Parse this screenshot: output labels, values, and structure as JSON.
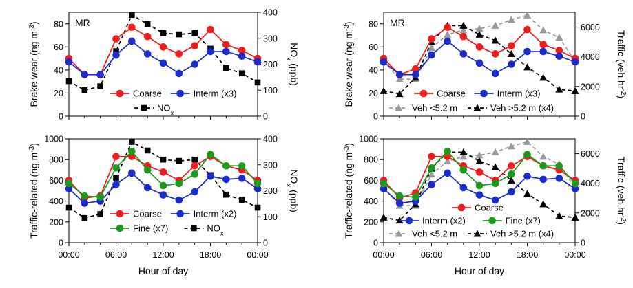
{
  "chart_data": [
    {
      "type": "line",
      "panel": "top-left",
      "annotation": "MR",
      "ylabel": "Brake wear (ng m-3)",
      "ylabel_base": "Brake wear (ng m",
      "ylabel_sup": "-3",
      "ylabel_close": ")",
      "y2label": "NOx (ppb)",
      "y2label_base": "NO",
      "y2label_sub": "x",
      "y2label_rest": " (ppb)",
      "xlim": [
        0,
        24
      ],
      "ylim": [
        0,
        90
      ],
      "y2lim": [
        0,
        400
      ],
      "yticks": [
        0,
        20,
        40,
        60,
        80
      ],
      "y2ticks": [
        0,
        100,
        200,
        300,
        400
      ],
      "grid": false,
      "series": [
        {
          "name": "Coarse",
          "axis": "left",
          "color": "#ee1c1c",
          "marker": "circle",
          "dash": false,
          "x": [
            0,
            2,
            4,
            6,
            8,
            10,
            12,
            14,
            16,
            18,
            20,
            22,
            24
          ],
          "y": [
            50,
            36,
            36,
            67,
            77,
            69,
            60,
            54,
            61,
            75,
            62,
            57,
            50
          ]
        },
        {
          "name": "Interm (x3)",
          "axis": "left",
          "color": "#1c2bcc",
          "marker": "circle",
          "dash": false,
          "x": [
            0,
            2,
            4,
            6,
            8,
            10,
            12,
            14,
            16,
            18,
            20,
            22,
            24
          ],
          "y": [
            47,
            36,
            36,
            53,
            65,
            54,
            46,
            37,
            45,
            56,
            56,
            52,
            47
          ]
        },
        {
          "name": "NOx",
          "axis": "right",
          "color": "#000000",
          "marker": "square",
          "dash": true,
          "x": [
            0,
            2,
            4,
            6,
            8,
            10,
            12,
            14,
            16,
            18,
            20,
            22,
            24
          ],
          "y": [
            135,
            100,
            115,
            250,
            390,
            355,
            320,
            315,
            320,
            260,
            185,
            165,
            130
          ]
        }
      ],
      "legend": [
        {
          "label": "Coarse",
          "series": 0
        },
        {
          "label": "Interm (x3)",
          "series": 1
        },
        {
          "label": "NO",
          "sub": "x",
          "series": 2
        }
      ]
    },
    {
      "type": "line",
      "panel": "top-right",
      "annotation": "MR",
      "ylabel": "Brake wear (ng m-3)",
      "ylabel_base": "Brake wear (ng m",
      "ylabel_sup": "-3",
      "ylabel_close": ")",
      "y2label": "Traffic (veh hr-2)",
      "y2label_base": "Traffic (veh hr",
      "y2label_sup": "-2",
      "y2label_close": ")",
      "xlim": [
        0,
        24
      ],
      "ylim": [
        0,
        90
      ],
      "y2lim": [
        0,
        7000
      ],
      "yticks": [
        0,
        20,
        40,
        60,
        80
      ],
      "y2ticks": [
        0,
        2000,
        4000,
        6000
      ],
      "grid": false,
      "series": [
        {
          "name": "Coarse",
          "axis": "left",
          "color": "#ee1c1c",
          "marker": "circle",
          "dash": false,
          "x": [
            0,
            2,
            4,
            6,
            8,
            10,
            12,
            14,
            16,
            18,
            20,
            22,
            24
          ],
          "y": [
            50,
            36,
            41,
            67,
            77,
            69,
            60,
            54,
            61,
            75,
            62,
            57,
            50
          ]
        },
        {
          "name": "Interm (x3)",
          "axis": "left",
          "color": "#1c2bcc",
          "marker": "circle",
          "dash": false,
          "x": [
            0,
            2,
            4,
            6,
            8,
            10,
            12,
            14,
            16,
            18,
            20,
            22,
            24
          ],
          "y": [
            47,
            36,
            36,
            53,
            65,
            54,
            46,
            37,
            45,
            56,
            56,
            52,
            47
          ]
        },
        {
          "name": "Veh <5.2 m",
          "axis": "right",
          "color": "#999999",
          "marker": "triangle",
          "dash": true,
          "x": [
            0,
            2,
            4,
            6,
            8,
            10,
            12,
            14,
            16,
            18,
            20,
            22,
            24
          ],
          "y": [
            3700,
            2500,
            2500,
            4600,
            5500,
            5800,
            5900,
            6100,
            6500,
            6800,
            5800,
            5300,
            3700
          ]
        },
        {
          "name": "Veh >5.2 m (x4)",
          "axis": "right",
          "color": "#000000",
          "marker": "triangle",
          "dash": true,
          "x": [
            0,
            2,
            4,
            6,
            8,
            10,
            12,
            14,
            16,
            18,
            20,
            22,
            24
          ],
          "y": [
            1700,
            1500,
            2600,
            5000,
            6100,
            6100,
            5500,
            5100,
            4200,
            3300,
            2600,
            1800,
            1700
          ]
        }
      ],
      "legend": [
        {
          "label": "Coarse",
          "series": 0
        },
        {
          "label": "Interm (x3)",
          "series": 1
        },
        {
          "label": "Veh <5.2 m",
          "series": 2
        },
        {
          "label": "Veh >5.2 m (x4)",
          "series": 3
        }
      ]
    },
    {
      "type": "line",
      "panel": "bottom-left",
      "ylabel": "Traffic-related (ng m-3)",
      "ylabel_base": "Traffic-related (ng m",
      "ylabel_sup": "-3",
      "ylabel_close": ")",
      "y2label": "NOx (ppb)",
      "y2label_base": "NO",
      "y2label_sub": "x",
      "y2label_rest": " (ppb)",
      "xlabel": "Hour of day",
      "xlim": [
        0,
        24
      ],
      "ylim": [
        0,
        1000
      ],
      "y2lim": [
        0,
        400
      ],
      "yticks": [
        0,
        200,
        400,
        600,
        800,
        1000
      ],
      "y2ticks": [
        0,
        100,
        200,
        300,
        400
      ],
      "xticks": [
        0,
        6,
        12,
        18,
        24
      ],
      "xticklabels": [
        "00:00",
        "06:00",
        "12:00",
        "18:00",
        "00:00"
      ],
      "grid": false,
      "series": [
        {
          "name": "Coarse",
          "axis": "left",
          "color": "#ee1c1c",
          "marker": "circle",
          "dash": false,
          "x": [
            0,
            2,
            4,
            6,
            8,
            10,
            12,
            14,
            16,
            18,
            20,
            22,
            24
          ],
          "y": [
            600,
            430,
            450,
            830,
            830,
            740,
            680,
            600,
            740,
            830,
            740,
            700,
            600
          ]
        },
        {
          "name": "Interm (x2)",
          "axis": "left",
          "color": "#1c2bcc",
          "marker": "circle",
          "dash": false,
          "x": [
            0,
            2,
            4,
            6,
            8,
            10,
            12,
            14,
            16,
            18,
            20,
            22,
            24
          ],
          "y": [
            520,
            380,
            400,
            560,
            670,
            530,
            460,
            410,
            490,
            640,
            610,
            620,
            520
          ]
        },
        {
          "name": "Fine (x7)",
          "axis": "left",
          "color": "#1d9a1d",
          "marker": "circle",
          "dash": false,
          "x": [
            0,
            2,
            4,
            6,
            8,
            10,
            12,
            14,
            16,
            18,
            20,
            22,
            24
          ],
          "y": [
            570,
            450,
            440,
            720,
            880,
            700,
            550,
            570,
            660,
            850,
            740,
            740,
            570
          ]
        },
        {
          "name": "NOx",
          "axis": "right",
          "color": "#000000",
          "marker": "square",
          "dash": true,
          "x": [
            0,
            2,
            4,
            6,
            8,
            10,
            12,
            14,
            16,
            18,
            20,
            22,
            24
          ],
          "y": [
            135,
            95,
            110,
            250,
            388,
            355,
            320,
            315,
            320,
            260,
            185,
            165,
            135
          ]
        }
      ],
      "legend": [
        {
          "label": "Coarse",
          "series": 0
        },
        {
          "label": "Interm (x2)",
          "series": 1
        },
        {
          "label": "Fine (x7)",
          "series": 2
        },
        {
          "label": "NO",
          "sub": "x",
          "series": 3
        }
      ]
    },
    {
      "type": "line",
      "panel": "bottom-right",
      "ylabel": "Traffic-related (ng m-3)",
      "ylabel_base": "Traffic-related (ng m",
      "ylabel_sup": "-3",
      "ylabel_close": ")",
      "y2label": "Traffic (veh hr-2)",
      "y2label_base": "Traffic (veh hr",
      "y2label_sup": "-2",
      "y2label_close": ")",
      "xlabel": "Hour of day",
      "xlim": [
        0,
        24
      ],
      "ylim": [
        0,
        1000
      ],
      "y2lim": [
        0,
        7000
      ],
      "yticks": [
        0,
        200,
        400,
        600,
        800,
        1000
      ],
      "y2ticks": [
        0,
        2000,
        4000,
        6000
      ],
      "xticks": [
        0,
        6,
        12,
        18,
        24
      ],
      "xticklabels": [
        "00:00",
        "06:00",
        "12:00",
        "18:00",
        "00:00"
      ],
      "grid": false,
      "series": [
        {
          "name": "Coarse",
          "axis": "left",
          "color": "#ee1c1c",
          "marker": "circle",
          "dash": false,
          "x": [
            0,
            2,
            4,
            6,
            8,
            10,
            12,
            14,
            16,
            18,
            20,
            22,
            24
          ],
          "y": [
            600,
            430,
            480,
            830,
            830,
            740,
            680,
            600,
            740,
            830,
            740,
            700,
            600
          ]
        },
        {
          "name": "Interm (x2)",
          "axis": "left",
          "color": "#1c2bcc",
          "marker": "circle",
          "dash": false,
          "x": [
            0,
            2,
            4,
            6,
            8,
            10,
            12,
            14,
            16,
            18,
            20,
            22,
            24
          ],
          "y": [
            520,
            380,
            400,
            560,
            670,
            530,
            460,
            410,
            490,
            640,
            610,
            620,
            520
          ]
        },
        {
          "name": "Fine (x7)",
          "axis": "left",
          "color": "#1d9a1d",
          "marker": "circle",
          "dash": false,
          "x": [
            0,
            2,
            4,
            6,
            8,
            10,
            12,
            14,
            16,
            18,
            20,
            22,
            24
          ],
          "y": [
            570,
            450,
            440,
            720,
            880,
            700,
            550,
            570,
            660,
            850,
            740,
            740,
            570
          ]
        },
        {
          "name": "Veh <5.2 m",
          "axis": "right",
          "color": "#999999",
          "marker": "triangle",
          "dash": true,
          "x": [
            0,
            2,
            4,
            6,
            8,
            10,
            12,
            14,
            16,
            18,
            20,
            22,
            24
          ],
          "y": [
            3700,
            2500,
            2500,
            4600,
            5500,
            5800,
            5900,
            6100,
            6500,
            6800,
            5800,
            5300,
            3700
          ]
        },
        {
          "name": "Veh >5.2 m (x4)",
          "axis": "right",
          "color": "#000000",
          "marker": "triangle",
          "dash": true,
          "x": [
            0,
            2,
            4,
            6,
            8,
            10,
            12,
            14,
            16,
            18,
            20,
            22,
            24
          ],
          "y": [
            1700,
            1500,
            2600,
            5000,
            6100,
            6100,
            5500,
            5100,
            4200,
            3300,
            2600,
            1800,
            1700
          ]
        }
      ],
      "legend": [
        {
          "label": "Coarse",
          "series": 0
        },
        {
          "label": "Interm (x2)",
          "series": 1
        },
        {
          "label": "Fine (x7)",
          "series": 2
        },
        {
          "label": "Veh <5.2 m",
          "series": 3
        },
        {
          "label": "Veh >5.2 m (x4)",
          "series": 4
        }
      ]
    }
  ]
}
